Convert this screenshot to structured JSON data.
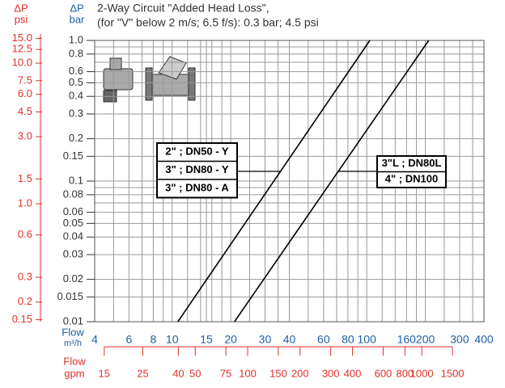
{
  "chart_data": {
    "type": "line",
    "title": "2-Way Circuit \"Added Head Loss\",",
    "subtitle": "(for \"V\" below 2 m/s; 6.5 f/s): 0.3 bar; 4.5 psi",
    "y_label": "ΔP",
    "y_unit": "bar",
    "y2_label": "ΔP",
    "y2_unit": "psi",
    "x_label": "Flow",
    "x_unit": "m³/h",
    "x2_label": "Flow",
    "x2_unit": "gpm",
    "log_x": true,
    "log_y": true,
    "grid": true,
    "xlim": [
      4,
      400
    ],
    "xticks": [
      4,
      6,
      8,
      10,
      15,
      20,
      30,
      40,
      60,
      80,
      100,
      160,
      200,
      300,
      400
    ],
    "xgrid_minor": [
      5,
      7,
      9,
      12,
      14,
      16,
      18,
      25,
      35,
      50,
      70,
      90,
      120,
      140,
      180,
      250,
      350
    ],
    "x2lim": [
      14.1,
      1837
    ],
    "x2ticks": [
      15,
      25,
      40,
      50,
      75,
      100,
      150,
      200,
      300,
      400,
      600,
      800,
      1000,
      1500
    ],
    "ylim": [
      0.01,
      1
    ],
    "yticks": [
      {
        "value": 1,
        "label": "1.0"
      },
      0.8,
      0.6,
      0.5,
      0.4,
      0.3,
      0.2,
      0.15,
      0.1,
      0.08,
      0.06,
      0.05,
      0.04,
      0.03,
      0.02,
      0.015,
      0.01
    ],
    "ygrid_minor": [
      0.9,
      0.7,
      0.09,
      0.07
    ],
    "y2lim": [
      0.145,
      14.5
    ],
    "y2ticks": [
      {
        "value": 15,
        "label": "15.0"
      },
      12.5,
      {
        "value": 10,
        "label": "10.0"
      },
      7.5,
      {
        "value": 6,
        "label": "6.0"
      },
      4.5,
      {
        "value": 3,
        "label": "3.0"
      },
      1.5,
      {
        "value": 1,
        "label": "1.0"
      },
      0.6,
      0.3,
      0.2,
      0.15
    ],
    "series": [
      {
        "color": "#000000",
        "x": [
          10.7,
          103.7
        ],
        "values": [
          0.01,
          1
        ],
        "labels": [
          "2\" ; DN50 - Y",
          "3\" ; DN80 - Y",
          "3\" ; DN80 - A"
        ]
      },
      {
        "color": "#000000",
        "x": [
          20.9,
          208
        ],
        "values": [
          0.01,
          1
        ],
        "labels": [
          "3\"L ; DN80L",
          "4\" ; DN100"
        ]
      }
    ]
  }
}
